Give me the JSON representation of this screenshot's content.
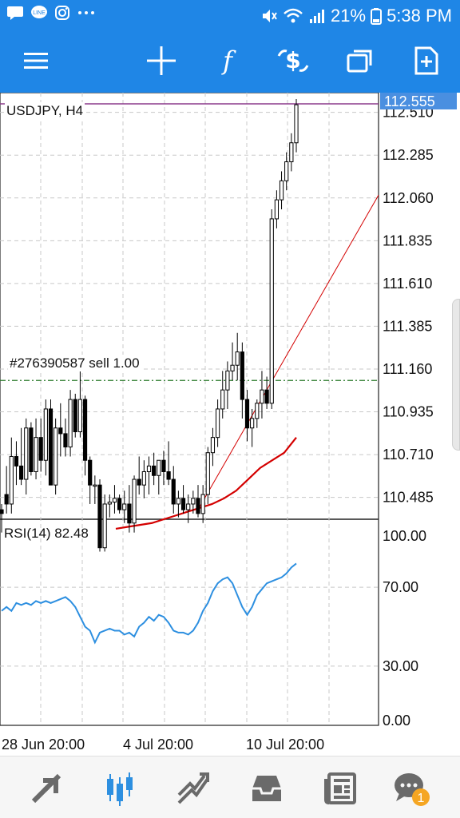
{
  "status_bar": {
    "battery": "21%",
    "time": "5:38 PM",
    "left_icons": [
      "chat-icon",
      "line-icon",
      "instagram-icon",
      "more-icon"
    ],
    "right_icons": [
      "mute-icon",
      "wifi-icon",
      "signal-icon",
      "battery-icon"
    ]
  },
  "toolbar": {
    "buttons": [
      "menu-icon",
      "crosshair-icon",
      "indicators-icon",
      "trade-icon",
      "windows-icon",
      "new-order-icon"
    ]
  },
  "chart": {
    "symbol_label": "USDJPY, H4",
    "order_label": "#276390587 sell 1.00",
    "price_label": "112.555",
    "price_ticks": [
      "112.510",
      "112.285",
      "112.060",
      "111.835",
      "111.610",
      "111.385",
      "111.160",
      "110.935",
      "110.710",
      "110.485"
    ],
    "rsi_label": "RSI(14) 82.48",
    "rsi_ticks": [
      "100.00",
      "70.00",
      "30.00",
      "0.00"
    ],
    "time_labels": [
      "28 Jun 20:00",
      "4 Jul 20:00",
      "10 Jul 20:00"
    ],
    "colors": {
      "candle": "#000000",
      "ma": "#d40000",
      "trendline": "#d40000",
      "rsi": "#2d8fe0",
      "price_tag": "#4a8fe0",
      "order_line": "#2a7a2a",
      "bid_line": "#8b3a8b"
    }
  },
  "chart_data": {
    "type": "candlestick",
    "title": "USDJPY, H4",
    "ylim": [
      110.37,
      112.58
    ],
    "current_price": 112.555,
    "order_price": 111.1,
    "candles": [
      [
        110.42,
        110.45,
        110.3,
        110.4
      ],
      [
        110.5,
        110.65,
        110.4,
        110.45
      ],
      [
        110.45,
        110.8,
        110.4,
        110.7
      ],
      [
        110.7,
        110.78,
        110.55,
        110.65
      ],
      [
        110.65,
        110.85,
        110.55,
        110.58
      ],
      [
        110.58,
        110.9,
        110.5,
        110.85
      ],
      [
        110.85,
        110.88,
        110.6,
        110.62
      ],
      [
        110.62,
        110.9,
        110.58,
        110.8
      ],
      [
        110.8,
        110.9,
        110.62,
        110.68
      ],
      [
        110.68,
        111.0,
        110.6,
        110.95
      ],
      [
        110.95,
        111.0,
        110.55,
        110.55
      ],
      [
        110.55,
        110.9,
        110.5,
        110.85
      ],
      [
        110.85,
        110.98,
        110.7,
        110.82
      ],
      [
        110.82,
        110.9,
        110.7,
        110.75
      ],
      [
        110.75,
        111.05,
        110.7,
        111.0
      ],
      [
        111.0,
        111.03,
        110.8,
        110.83
      ],
      [
        110.83,
        111.15,
        110.8,
        111.0
      ],
      [
        111.0,
        111.02,
        110.6,
        110.68
      ],
      [
        110.68,
        110.7,
        110.45,
        110.55
      ],
      [
        110.55,
        110.6,
        110.45,
        110.55
      ],
      [
        110.55,
        110.58,
        110.2,
        110.22
      ],
      [
        110.22,
        110.5,
        110.2,
        110.45
      ],
      [
        110.45,
        110.5,
        110.38,
        110.46
      ],
      [
        110.46,
        110.55,
        110.4,
        110.48
      ],
      [
        110.48,
        110.5,
        110.4,
        110.42
      ],
      [
        110.42,
        110.52,
        110.35,
        110.45
      ],
      [
        110.45,
        110.55,
        110.3,
        110.35
      ],
      [
        110.35,
        110.6,
        110.3,
        110.58
      ],
      [
        110.58,
        110.7,
        110.5,
        110.55
      ],
      [
        110.55,
        110.68,
        110.48,
        110.62
      ],
      [
        110.62,
        110.7,
        110.5,
        110.65
      ],
      [
        110.65,
        110.72,
        110.55,
        110.6
      ],
      [
        110.6,
        110.68,
        110.5,
        110.68
      ],
      [
        110.68,
        110.73,
        110.55,
        110.62
      ],
      [
        110.62,
        110.78,
        110.55,
        110.58
      ],
      [
        110.58,
        110.65,
        110.4,
        110.45
      ],
      [
        110.45,
        110.52,
        110.38,
        110.48
      ],
      [
        110.48,
        110.55,
        110.4,
        110.42
      ],
      [
        110.42,
        110.5,
        110.35,
        110.45
      ],
      [
        110.45,
        110.52,
        110.4,
        110.48
      ],
      [
        110.48,
        110.55,
        110.38,
        110.4
      ],
      [
        110.4,
        110.55,
        110.35,
        110.5
      ],
      [
        110.5,
        110.75,
        110.45,
        110.72
      ],
      [
        110.72,
        110.85,
        110.65,
        110.8
      ],
      [
        110.8,
        111.0,
        110.75,
        110.95
      ],
      [
        110.95,
        111.15,
        110.9,
        111.05
      ],
      [
        111.05,
        111.2,
        110.95,
        111.15
      ],
      [
        111.15,
        111.3,
        111.1,
        111.18
      ],
      [
        111.18,
        111.35,
        111.1,
        111.25
      ],
      [
        111.25,
        111.3,
        110.9,
        111.0
      ],
      [
        111.0,
        111.05,
        110.78,
        110.85
      ],
      [
        110.85,
        110.95,
        110.75,
        110.9
      ],
      [
        110.9,
        111.0,
        110.85,
        110.98
      ],
      [
        110.98,
        111.15,
        110.9,
        111.05
      ],
      [
        111.05,
        111.12,
        110.95,
        110.98
      ],
      [
        110.98,
        112.0,
        110.95,
        111.95
      ],
      [
        111.95,
        112.1,
        111.9,
        112.05
      ],
      [
        112.05,
        112.2,
        112.0,
        112.15
      ],
      [
        112.15,
        112.3,
        112.1,
        112.25
      ],
      [
        112.25,
        112.4,
        112.2,
        112.35
      ],
      [
        112.35,
        112.58,
        112.3,
        112.55
      ]
    ],
    "ma": [
      110.32,
      110.33,
      110.34,
      110.35,
      110.37,
      110.39,
      110.41,
      110.43,
      110.45,
      110.48,
      110.52,
      110.58,
      110.64,
      110.68,
      110.72,
      110.8
    ],
    "rsi": [
      58,
      60,
      58,
      62,
      61,
      62,
      61,
      63,
      62,
      63,
      62,
      63,
      64,
      65,
      63,
      60,
      55,
      50,
      48,
      42,
      47,
      48,
      49,
      48,
      48,
      46,
      47,
      45,
      50,
      52,
      55,
      53,
      56,
      55,
      52,
      48,
      47,
      47,
      46,
      48,
      52,
      58,
      62,
      68,
      72,
      74,
      75,
      72,
      66,
      60,
      56,
      60,
      66,
      69,
      72,
      73,
      74,
      75,
      77,
      80,
      82
    ]
  }
}
